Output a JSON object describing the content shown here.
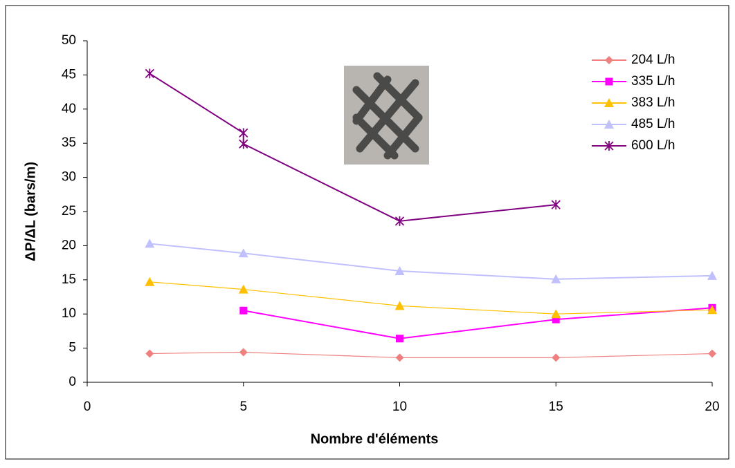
{
  "chart_data": {
    "type": "line",
    "x_label": "Nombre d'éléments",
    "y_label": "ΔP/ΔL (bars/m)",
    "xlim": [
      0,
      20
    ],
    "xticks": [
      0,
      5,
      10,
      15,
      20
    ],
    "ylim": [
      0,
      50
    ],
    "yticks": [
      0,
      5,
      10,
      15,
      20,
      25,
      30,
      35,
      40,
      45,
      50
    ],
    "grid": false,
    "legend": "top-right",
    "series": [
      {
        "name": "204 L/h",
        "color": "#f08080",
        "marker": "diamond",
        "x": [
          2,
          5,
          10,
          15,
          20
        ],
        "values": [
          4.2,
          4.4,
          3.6,
          3.6,
          4.2
        ]
      },
      {
        "name": "335 L/h",
        "color": "#ff00ff",
        "marker": "square",
        "x": [
          5,
          10,
          15,
          20
        ],
        "values": [
          10.5,
          6.4,
          9.2,
          10.9
        ]
      },
      {
        "name": "383 L/h",
        "color": "#ffc000",
        "marker": "triangle",
        "x": [
          2,
          5,
          10,
          15,
          20
        ],
        "values": [
          14.7,
          13.6,
          11.2,
          10.0,
          10.6
        ]
      },
      {
        "name": "485 L/h",
        "color": "#c0c0ff",
        "marker": "triangle",
        "x": [
          2,
          5,
          10,
          15,
          20
        ],
        "values": [
          20.3,
          18.9,
          16.3,
          15.1,
          15.6
        ]
      },
      {
        "name": "600 L/h",
        "color": "#800080",
        "marker": "asterisk",
        "x": [
          2,
          5,
          5,
          10,
          15
        ],
        "values": [
          45.2,
          36.5,
          34.9,
          23.6,
          26.0
        ]
      }
    ]
  }
}
